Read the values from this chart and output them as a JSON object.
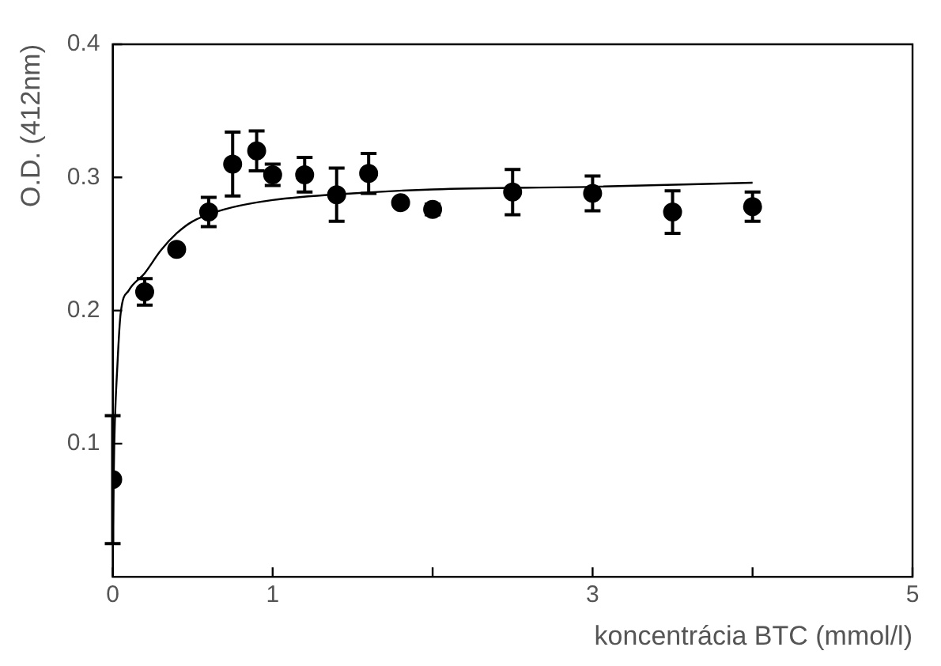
{
  "chart_data": {
    "type": "scatter",
    "xlabel": "koncentrácia BTC (mmol/l)",
    "ylabel": "O.D. (412nm)",
    "xlim": [
      0,
      5
    ],
    "xticks": [
      0,
      1,
      {
        "value": 2,
        "label": null
      },
      3,
      {
        "value": 4,
        "label": null
      },
      5
    ],
    "ylim": [
      0,
      0.4
    ],
    "yticks": [
      0.1,
      0.2,
      0.3,
      0.4
    ],
    "grid": false,
    "legend": false,
    "marker": "circle",
    "series": [
      {
        "color": "#000000",
        "x": [
          0,
          0.2,
          0.4,
          0.6,
          0.75,
          0.9,
          1.0,
          1.2,
          1.4,
          1.6,
          1.8,
          2.0,
          2.5,
          3.0,
          3.5,
          4.0
        ],
        "values": [
          0.073,
          0.214,
          0.246,
          0.274,
          0.31,
          0.32,
          0.302,
          0.302,
          0.287,
          0.303,
          0.281,
          0.276,
          0.289,
          0.288,
          0.274,
          0.278
        ],
        "errors": [
          0.048,
          0.01,
          null,
          0.011,
          0.024,
          0.015,
          0.008,
          0.013,
          0.02,
          0.015,
          null,
          0.004,
          0.017,
          0.013,
          0.016,
          0.011
        ]
      },
      {
        "type": "line",
        "color": "#000000",
        "marker": "none",
        "line_style": "solid",
        "x": [
          0,
          0.01,
          0.03,
          0.05,
          0.1,
          0.2,
          0.3,
          0.4,
          0.5,
          0.7,
          1,
          1.5,
          2,
          3,
          4
        ],
        "values": [
          0.025,
          0.1,
          0.16,
          0.198,
          0.215,
          0.228,
          0.245,
          0.258,
          0.267,
          0.276,
          0.283,
          0.288,
          0.291,
          0.293,
          0.296
        ]
      }
    ]
  }
}
